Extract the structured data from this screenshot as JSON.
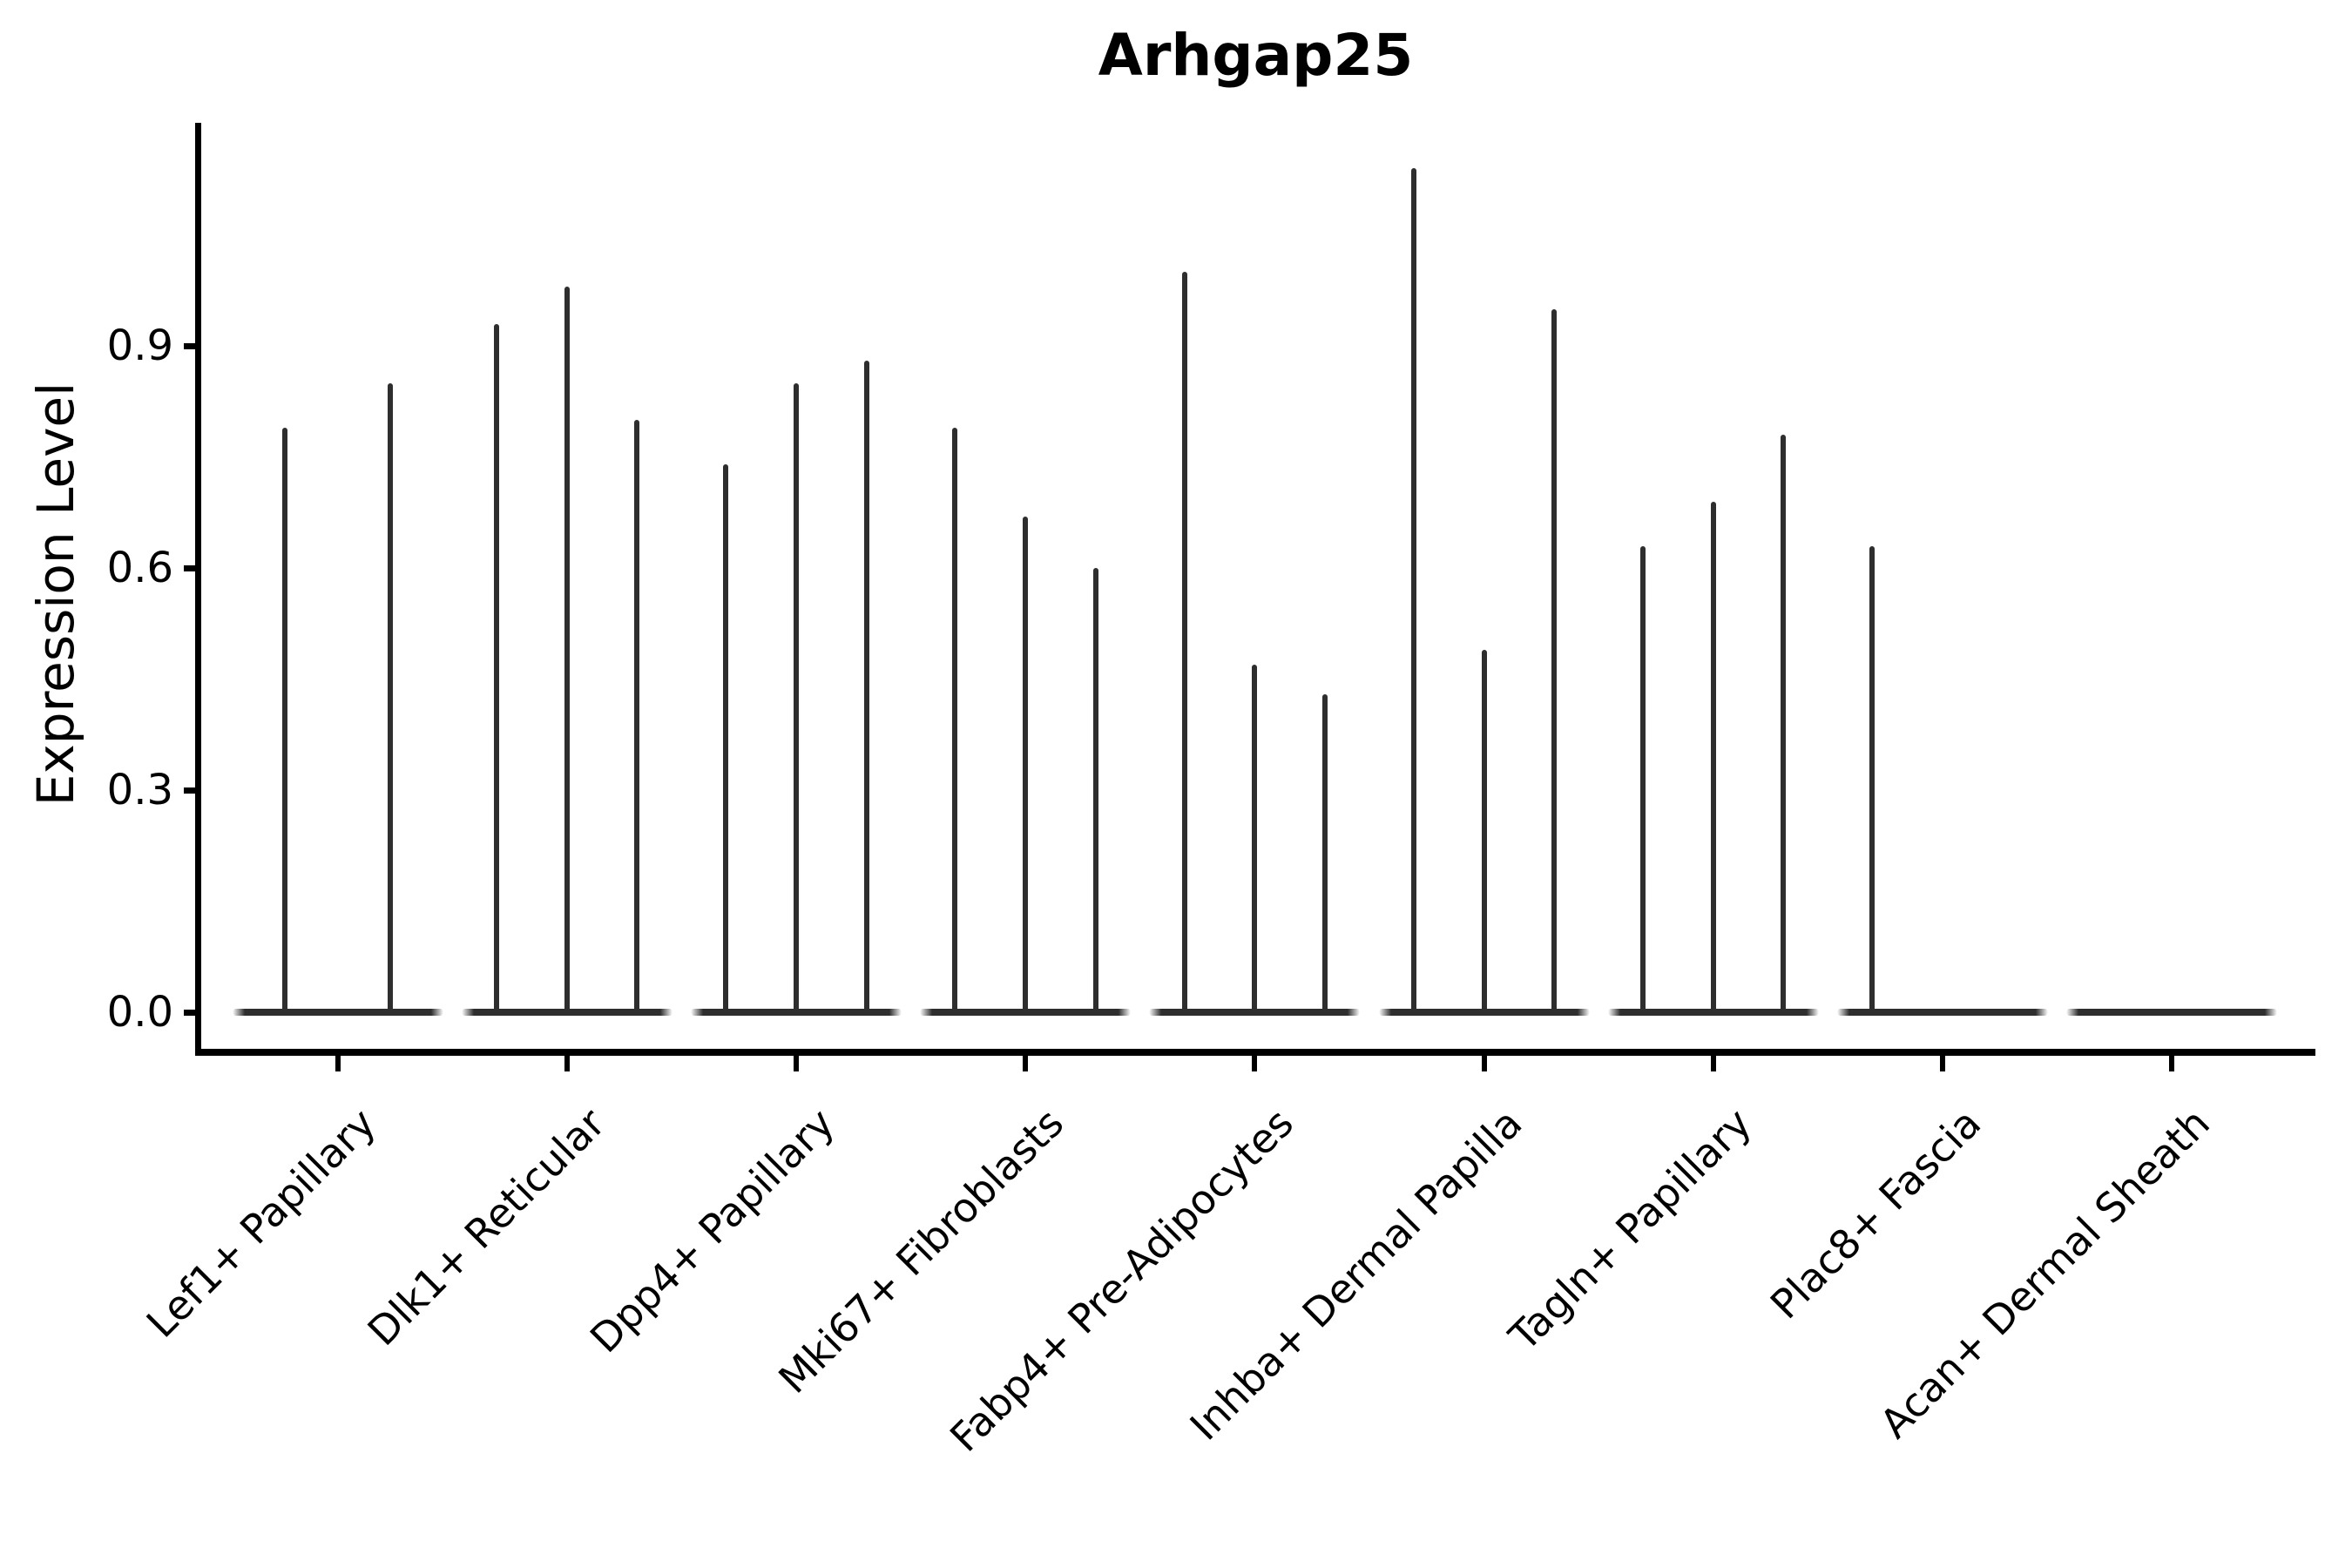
{
  "chart_data": {
    "type": "violin",
    "title": "Arhgap25",
    "xlabel": "",
    "ylabel": "Expression Level",
    "ylim": [
      0,
      1.2
    ],
    "yticks": [
      {
        "label": "0.0",
        "value": 0.0
      },
      {
        "label": "0.3",
        "value": 0.3
      },
      {
        "label": "0.6",
        "value": 0.6
      },
      {
        "label": "0.9",
        "value": 0.9
      }
    ],
    "categories": [
      "Lef1+ Papillary",
      "Dlk1+ Reticular",
      "Dpp4+ Papillary",
      "Mki67+ Fibroblasts",
      "Fabp4+ Pre-Adipocytes",
      "Inhba+ Dermal Papilla",
      "Tagln+ Papillary",
      "Plac8+ Fascia",
      "Acan+ Dermal Sheath"
    ],
    "groups": [
      {
        "category": "Lef1+ Papillary",
        "violin_max_values": [
          0.79,
          0.85
        ]
      },
      {
        "category": "Dlk1+ Reticular",
        "violin_max_values": [
          0.93,
          0.98,
          0.8
        ]
      },
      {
        "category": "Dpp4+ Papillary",
        "violin_max_values": [
          0.74,
          0.85,
          0.88
        ]
      },
      {
        "category": "Mki67+ Fibroblasts",
        "violin_max_values": [
          0.79,
          0.67,
          0.6
        ]
      },
      {
        "category": "Fabp4+ Pre-Adipocytes",
        "violin_max_values": [
          1.0,
          0.47,
          0.43
        ]
      },
      {
        "category": "Inhba+ Dermal Papilla",
        "violin_max_values": [
          1.14,
          0.49,
          0.95
        ]
      },
      {
        "category": "Tagln+ Papillary",
        "violin_max_values": [
          0.63,
          0.69,
          0.78
        ]
      },
      {
        "category": "Plac8+ Fascia",
        "violin_max_values": [
          0.63,
          0.0,
          0.0
        ]
      },
      {
        "category": "Acan+ Dermal Sheath",
        "violin_max_values": [
          0.0,
          0.0,
          0.0
        ]
      }
    ],
    "legend": "none",
    "grid": "off",
    "colors": {
      "axis": "#000000",
      "violin": "#2e2e2e",
      "background": "#ffffff"
    }
  }
}
